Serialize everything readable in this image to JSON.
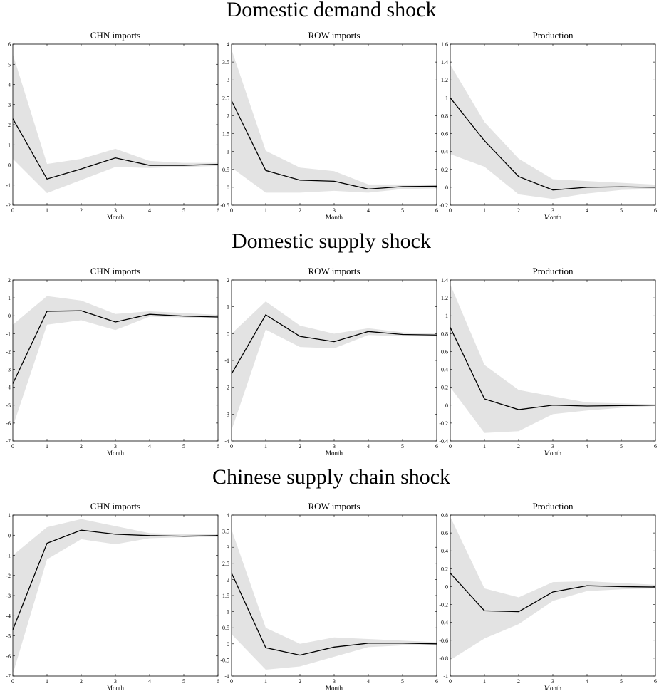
{
  "section_titles": [
    "Domestic demand shock",
    "Domestic supply shock",
    "Chinese supply chain shock"
  ],
  "chart_data": [
    {
      "type": "line",
      "title": "CHN imports",
      "xlabel": "Month",
      "x": [
        0,
        1,
        2,
        3,
        4,
        5,
        6
      ],
      "xlim": [
        0,
        6
      ],
      "xticks": [
        0,
        1,
        2,
        3,
        4,
        5,
        6
      ],
      "ylim": [
        -2,
        6
      ],
      "yticks": [
        -2,
        -1,
        0,
        1,
        2,
        3,
        4,
        5,
        6
      ],
      "series": [
        {
          "color": "#000000",
          "band_color": "#e3e3e3",
          "values": [
            2.3,
            -0.7,
            -0.2,
            0.35,
            -0.02,
            -0.02,
            0.03
          ],
          "lower": [
            0.3,
            -1.4,
            -0.75,
            -0.1,
            -0.15,
            -0.1,
            -0.05
          ],
          "upper": [
            5.5,
            0.05,
            0.3,
            0.8,
            0.2,
            0.1,
            0.1
          ]
        }
      ]
    },
    {
      "type": "line",
      "title": "ROW imports",
      "xlabel": "Month",
      "x": [
        0,
        1,
        2,
        3,
        4,
        5,
        6
      ],
      "xlim": [
        0,
        6
      ],
      "xticks": [
        0,
        1,
        2,
        3,
        4,
        5,
        6
      ],
      "ylim": [
        -0.5,
        4
      ],
      "yticks": [
        -0.5,
        0,
        0.5,
        1,
        1.5,
        2,
        2.5,
        3,
        3.5,
        4
      ],
      "series": [
        {
          "color": "#000000",
          "band_color": "#e3e3e3",
          "values": [
            2.42,
            0.47,
            0.2,
            0.17,
            -0.05,
            0.02,
            0.03
          ],
          "lower": [
            0.55,
            -0.15,
            -0.15,
            -0.1,
            -0.15,
            -0.05,
            -0.03
          ],
          "upper": [
            3.85,
            1.02,
            0.55,
            0.45,
            0.08,
            0.08,
            0.08
          ]
        }
      ]
    },
    {
      "type": "line",
      "title": "Production",
      "xlabel": "Month",
      "x": [
        0,
        1,
        2,
        3,
        4,
        5,
        6
      ],
      "xlim": [
        0,
        6
      ],
      "xticks": [
        0,
        1,
        2,
        3,
        4,
        5,
        6
      ],
      "ylim": [
        -0.2,
        1.6
      ],
      "yticks": [
        -0.2,
        0,
        0.2,
        0.4,
        0.6,
        0.8,
        1,
        1.2,
        1.4,
        1.6
      ],
      "series": [
        {
          "color": "#000000",
          "band_color": "#e3e3e3",
          "values": [
            1.0,
            0.52,
            0.12,
            -0.03,
            0.0,
            0.005,
            0.0
          ],
          "lower": [
            0.37,
            0.23,
            -0.08,
            -0.13,
            -0.07,
            -0.03,
            -0.02
          ],
          "upper": [
            1.37,
            0.73,
            0.32,
            0.09,
            0.07,
            0.05,
            0.03
          ]
        }
      ]
    },
    {
      "type": "line",
      "title": "CHN imports",
      "xlabel": "Month",
      "x": [
        0,
        1,
        2,
        3,
        4,
        5,
        6
      ],
      "xlim": [
        0,
        6
      ],
      "xticks": [
        0,
        1,
        2,
        3,
        4,
        5,
        6
      ],
      "ylim": [
        -7,
        2
      ],
      "yticks": [
        -7,
        -6,
        -5,
        -4,
        -3,
        -2,
        -1,
        0,
        1,
        2
      ],
      "series": [
        {
          "color": "#000000",
          "band_color": "#e3e3e3",
          "values": [
            -3.8,
            0.25,
            0.28,
            -0.35,
            0.08,
            -0.02,
            -0.07
          ],
          "lower": [
            -6.2,
            -0.5,
            -0.25,
            -0.8,
            -0.05,
            -0.1,
            -0.15
          ],
          "upper": [
            -0.5,
            1.1,
            0.85,
            0.1,
            0.25,
            0.15,
            0.05
          ]
        }
      ]
    },
    {
      "type": "line",
      "title": "ROW imports",
      "xlabel": "Month",
      "x": [
        0,
        1,
        2,
        3,
        4,
        5,
        6
      ],
      "xlim": [
        0,
        6
      ],
      "xticks": [
        0,
        1,
        2,
        3,
        4,
        5,
        6
      ],
      "ylim": [
        -4,
        2
      ],
      "yticks": [
        -4,
        -3,
        -2,
        -1,
        0,
        1,
        2
      ],
      "series": [
        {
          "color": "#000000",
          "band_color": "#e3e3e3",
          "values": [
            -1.5,
            0.7,
            -0.1,
            -0.3,
            0.08,
            -0.03,
            -0.05
          ],
          "lower": [
            -3.6,
            0.15,
            -0.5,
            -0.55,
            -0.05,
            -0.1,
            -0.1
          ],
          "upper": [
            0.0,
            1.2,
            0.3,
            0.0,
            0.2,
            0.05,
            0.0
          ]
        }
      ]
    },
    {
      "type": "line",
      "title": "Production",
      "xlabel": "Month",
      "x": [
        0,
        1,
        2,
        3,
        4,
        5,
        6
      ],
      "xlim": [
        0,
        6
      ],
      "xticks": [
        0,
        1,
        2,
        3,
        4,
        5,
        6
      ],
      "ylim": [
        -0.4,
        1.4
      ],
      "yticks": [
        -0.4,
        -0.2,
        0,
        0.2,
        0.4,
        0.6,
        0.8,
        1,
        1.2,
        1.4
      ],
      "series": [
        {
          "color": "#000000",
          "band_color": "#e3e3e3",
          "values": [
            0.87,
            0.07,
            -0.05,
            0.0,
            -0.01,
            -0.005,
            0.0
          ],
          "lower": [
            0.2,
            -0.31,
            -0.29,
            -0.1,
            -0.06,
            -0.03,
            -0.01
          ],
          "upper": [
            1.35,
            0.45,
            0.17,
            0.1,
            0.03,
            0.02,
            0.01
          ]
        }
      ]
    },
    {
      "type": "line",
      "title": "CHN imports",
      "xlabel": "Month",
      "x": [
        0,
        1,
        2,
        3,
        4,
        5,
        6
      ],
      "xlim": [
        0,
        6
      ],
      "xticks": [
        0,
        1,
        2,
        3,
        4,
        5,
        6
      ],
      "ylim": [
        -7,
        1
      ],
      "yticks": [
        -7,
        -6,
        -5,
        -4,
        -3,
        -2,
        -1,
        0,
        1
      ],
      "series": [
        {
          "color": "#000000",
          "band_color": "#e3e3e3",
          "values": [
            -4.7,
            -0.4,
            0.25,
            0.05,
            -0.02,
            -0.05,
            -0.02
          ],
          "lower": [
            -6.9,
            -1.2,
            -0.2,
            -0.45,
            -0.15,
            -0.1,
            -0.08
          ],
          "upper": [
            -1.0,
            0.4,
            0.8,
            0.45,
            0.1,
            0.05,
            0.05
          ]
        }
      ]
    },
    {
      "type": "line",
      "title": "ROW imports",
      "xlabel": "Month",
      "x": [
        0,
        1,
        2,
        3,
        4,
        5,
        6
      ],
      "xlim": [
        0,
        6
      ],
      "xticks": [
        0,
        1,
        2,
        3,
        4,
        5,
        6
      ],
      "ylim": [
        -1,
        4
      ],
      "yticks": [
        -1,
        -0.5,
        0,
        0.5,
        1,
        1.5,
        2,
        2.5,
        3,
        3.5,
        4
      ],
      "series": [
        {
          "color": "#000000",
          "band_color": "#e3e3e3",
          "values": [
            2.2,
            -0.12,
            -0.35,
            -0.1,
            0.02,
            0.02,
            0.0
          ],
          "lower": [
            0.3,
            -0.8,
            -0.7,
            -0.4,
            -0.1,
            -0.05,
            -0.05
          ],
          "upper": [
            3.55,
            0.5,
            0.0,
            0.2,
            0.15,
            0.1,
            0.05
          ]
        }
      ]
    },
    {
      "type": "line",
      "title": "Production",
      "xlabel": "Month",
      "x": [
        0,
        1,
        2,
        3,
        4,
        5,
        6
      ],
      "xlim": [
        0,
        6
      ],
      "xticks": [
        0,
        1,
        2,
        3,
        4,
        5,
        6
      ],
      "ylim": [
        -1,
        0.8
      ],
      "yticks": [
        -1,
        -0.8,
        -0.6,
        -0.4,
        -0.2,
        0,
        0.2,
        0.4,
        0.6,
        0.8
      ],
      "series": [
        {
          "color": "#000000",
          "band_color": "#e3e3e3",
          "values": [
            0.15,
            -0.27,
            -0.28,
            -0.06,
            0.01,
            0.0,
            -0.005
          ],
          "lower": [
            -0.82,
            -0.58,
            -0.42,
            -0.16,
            -0.05,
            -0.03,
            -0.02
          ],
          "upper": [
            0.78,
            -0.02,
            -0.12,
            0.05,
            0.06,
            0.04,
            0.02
          ]
        }
      ]
    }
  ]
}
